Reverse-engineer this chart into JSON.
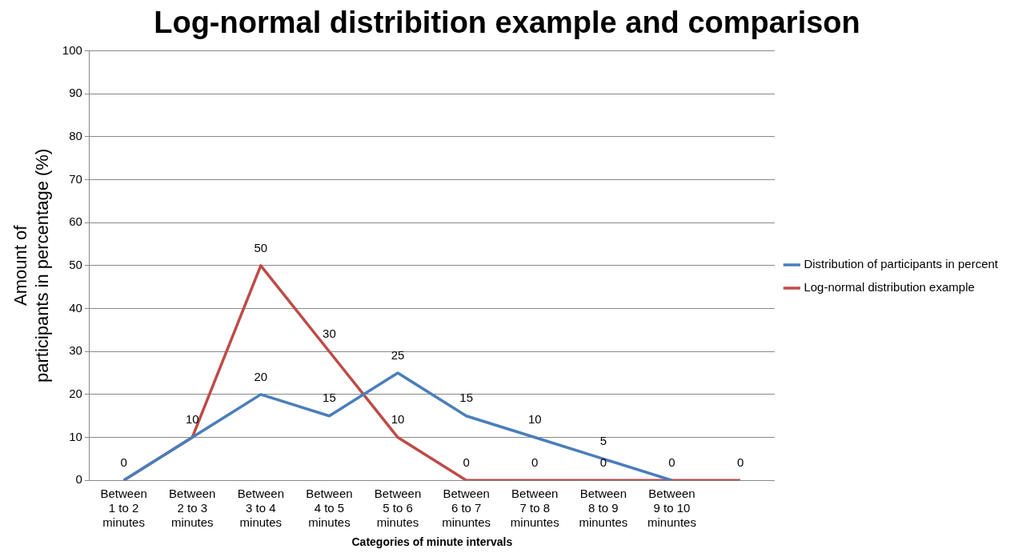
{
  "chart_data": {
    "type": "line",
    "title": "Log-normal distribition example and comparison",
    "xlabel": "Categories of minute intervals",
    "ylabel": "Amount of participants in percentage (%)",
    "categories": [
      "Between 1 to 2 minutes",
      "Between 2 to 3 minutes",
      "Between 3 to 4 minutes",
      "Between 4 to 5 minutes",
      "Between 5 to 6 minutes",
      "Between 6 to 7 minuntes",
      "Between 7 to 8 minuntes",
      "Between 8 to 9 minuntes",
      "Between 9 to 10 minuntes",
      null
    ],
    "series": [
      {
        "name": "Distribution of participants in percent",
        "color": "#4a7ebb",
        "values": [
          0,
          10,
          20,
          15,
          25,
          15,
          10,
          5,
          0,
          null
        ],
        "value_labels": [
          null,
          null,
          "20",
          "15",
          "25",
          "15",
          "10",
          "5",
          null,
          null
        ]
      },
      {
        "name": "Log-normal distribution example",
        "color": "#be4b48",
        "values": [
          0,
          10,
          50,
          30,
          10,
          0,
          0,
          0,
          0,
          0
        ],
        "value_labels": [
          "0",
          "10",
          "50",
          "30",
          "10",
          "0",
          "0",
          "0",
          "0",
          "0"
        ]
      }
    ],
    "ylim": [
      0,
      100
    ],
    "yticks": [
      0,
      10,
      20,
      30,
      40,
      50,
      60,
      70,
      80,
      90,
      100
    ],
    "grid": "y",
    "legend": "right",
    "marker": "none",
    "line_style": "solid"
  }
}
